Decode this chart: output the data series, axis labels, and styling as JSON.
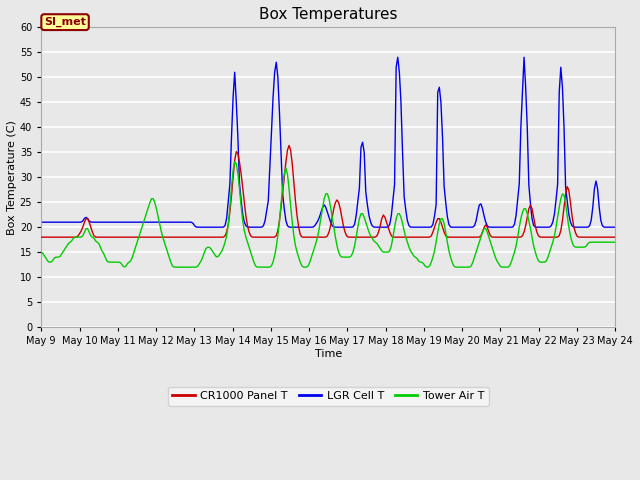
{
  "title": "Box Temperatures",
  "xlabel": "Time",
  "ylabel": "Box Temperature (C)",
  "ylim": [
    0,
    60
  ],
  "yticks": [
    0,
    5,
    10,
    15,
    20,
    25,
    30,
    35,
    40,
    45,
    50,
    55,
    60
  ],
  "background_color": "#e8e8e8",
  "plot_bg_color": "#e8e8e8",
  "grid_color": "#ffffff",
  "annotation_text": "SI_met",
  "annotation_bg": "#ffff99",
  "annotation_border": "#8B0000",
  "annotation_text_color": "#8B0000",
  "legend_entries": [
    "CR1000 Panel T",
    "LGR Cell T",
    "Tower Air T"
  ],
  "line_colors": [
    "#cc0000",
    "#0000ee",
    "#00cc00"
  ],
  "title_fontsize": 11,
  "tick_fontsize": 7,
  "label_fontsize": 8,
  "cr1000": [
    18,
    18,
    18,
    18,
    18,
    18,
    18,
    18,
    18,
    18,
    18,
    18,
    18,
    18,
    18,
    18,
    18,
    18,
    18,
    18,
    18,
    18,
    18,
    18,
    19,
    19,
    20,
    21,
    22,
    22,
    21,
    20,
    19,
    18,
    18,
    18,
    18,
    18,
    18,
    18,
    18,
    18,
    18,
    18,
    18,
    18,
    18,
    18,
    18,
    18,
    18,
    18,
    18,
    18,
    18,
    18,
    18,
    18,
    18,
    18,
    18,
    18,
    18,
    18,
    18,
    18,
    18,
    18,
    18,
    18,
    18,
    18,
    18,
    18,
    18,
    18,
    18,
    18,
    18,
    18,
    18,
    18,
    18,
    18,
    18,
    18,
    18,
    18,
    18,
    18,
    18,
    18,
    18,
    18,
    18,
    18,
    18,
    18,
    18,
    18,
    18,
    18,
    18,
    18,
    18,
    18,
    18,
    18,
    18,
    18,
    18,
    18,
    18,
    18,
    18,
    18,
    19,
    20,
    23,
    26,
    30,
    34,
    36,
    35,
    33,
    31,
    28,
    25,
    22,
    20,
    19,
    18,
    18,
    18,
    18,
    18,
    18,
    18,
    18,
    18,
    18,
    18,
    18,
    18,
    18,
    18,
    18,
    18,
    19,
    21,
    24,
    27,
    30,
    33,
    36,
    37,
    36,
    33,
    29,
    25,
    22,
    20,
    18,
    18,
    18,
    18,
    18,
    18,
    18,
    18,
    18,
    18,
    18,
    18,
    18,
    18,
    18,
    18,
    18,
    18,
    19,
    20,
    22,
    24,
    25,
    26,
    25,
    24,
    22,
    20,
    19,
    18,
    18,
    18,
    18,
    18,
    18,
    18,
    18,
    18,
    18,
    18,
    18,
    18,
    18,
    18,
    18,
    18,
    18,
    18,
    18,
    19,
    20,
    22,
    23,
    22,
    21,
    20,
    19,
    18,
    18,
    18,
    18,
    18,
    18,
    18,
    18,
    18,
    18,
    18,
    18,
    18,
    18,
    18,
    18,
    18,
    18,
    18,
    18,
    18,
    18,
    18,
    18,
    18,
    18,
    19,
    20,
    21,
    22,
    22,
    21,
    20,
    19,
    18,
    18,
    18,
    18,
    18,
    18,
    18,
    18,
    18,
    18,
    18,
    18,
    18,
    18,
    18,
    18,
    18,
    18,
    18,
    18,
    18,
    18,
    18,
    19,
    20,
    21,
    20,
    19,
    18,
    18,
    18,
    18,
    18,
    18,
    18,
    18,
    18,
    18,
    18,
    18,
    18,
    18,
    18,
    18,
    18,
    18,
    18,
    18,
    18,
    19,
    20,
    22,
    24,
    25,
    24,
    22,
    20,
    19,
    18,
    18,
    18,
    18,
    18,
    18,
    18,
    18,
    18,
    18,
    18,
    18,
    18,
    18,
    19,
    21,
    24,
    27,
    29,
    28,
    25,
    22,
    20,
    19,
    18,
    18,
    18,
    18,
    18,
    18,
    18,
    18,
    18,
    18,
    18,
    18,
    18,
    18,
    18,
    18,
    18,
    18,
    18,
    18,
    18,
    18,
    18,
    18,
    18
  ],
  "lgr": [
    21,
    21,
    21,
    21,
    21,
    21,
    21,
    21,
    21,
    21,
    21,
    21,
    21,
    21,
    21,
    21,
    21,
    21,
    21,
    21,
    21,
    21,
    21,
    21,
    21,
    21,
    21,
    22,
    22,
    22,
    21,
    21,
    21,
    21,
    21,
    21,
    21,
    21,
    21,
    21,
    21,
    21,
    21,
    21,
    21,
    21,
    21,
    21,
    21,
    21,
    21,
    21,
    21,
    21,
    21,
    21,
    21,
    21,
    21,
    21,
    21,
    21,
    21,
    21,
    21,
    21,
    21,
    21,
    21,
    21,
    21,
    21,
    21,
    21,
    21,
    21,
    21,
    21,
    21,
    21,
    21,
    21,
    21,
    21,
    21,
    21,
    21,
    21,
    21,
    21,
    21,
    21,
    21,
    21,
    21,
    21,
    20,
    20,
    20,
    20,
    20,
    20,
    20,
    20,
    20,
    20,
    20,
    20,
    20,
    20,
    20,
    20,
    20,
    20,
    20,
    20,
    21,
    25,
    30,
    38,
    46,
    51,
    45,
    38,
    30,
    25,
    22,
    21,
    20,
    20,
    20,
    20,
    20,
    20,
    20,
    20,
    20,
    20,
    20,
    20,
    21,
    23,
    26,
    32,
    39,
    46,
    51,
    53,
    50,
    43,
    35,
    28,
    23,
    21,
    20,
    20,
    20,
    20,
    20,
    20,
    20,
    20,
    20,
    20,
    20,
    20,
    20,
    20,
    20,
    20,
    20,
    20,
    21,
    21,
    22,
    23,
    24,
    25,
    24,
    23,
    22,
    21,
    20,
    20,
    20,
    20,
    20,
    20,
    20,
    20,
    20,
    20,
    20,
    20,
    20,
    20,
    20,
    22,
    25,
    29,
    36,
    37,
    35,
    28,
    24,
    22,
    21,
    20,
    20,
    20,
    20,
    20,
    20,
    20,
    20,
    20,
    20,
    20,
    20,
    22,
    25,
    30,
    52,
    54,
    51,
    45,
    35,
    27,
    23,
    21,
    20,
    20,
    20,
    20,
    20,
    20,
    20,
    20,
    20,
    20,
    20,
    20,
    20,
    20,
    20,
    20,
    22,
    25,
    47,
    48,
    45,
    38,
    30,
    24,
    22,
    20,
    20,
    20,
    20,
    20,
    20,
    20,
    20,
    20,
    20,
    20,
    20,
    20,
    20,
    20,
    20,
    20,
    21,
    23,
    25,
    25,
    24,
    22,
    21,
    20,
    20,
    20,
    20,
    20,
    20,
    20,
    20,
    20,
    20,
    20,
    20,
    20,
    20,
    20,
    20,
    20,
    20,
    22,
    25,
    30,
    40,
    47,
    54,
    48,
    40,
    30,
    24,
    21,
    20,
    20,
    20,
    20,
    20,
    20,
    20,
    20,
    20,
    20,
    20,
    20,
    21,
    22,
    25,
    30,
    47,
    52,
    48,
    40,
    29,
    25,
    22,
    21,
    20,
    20,
    20,
    20,
    20,
    20,
    20,
    20,
    20,
    20,
    20,
    20,
    21,
    23,
    29,
    30,
    29,
    23,
    21,
    20,
    20,
    20,
    20,
    20,
    20,
    20,
    20,
    20
  ],
  "tower": [
    15,
    15,
    14,
    14,
    13,
    13,
    13,
    13,
    14,
    14,
    14,
    14,
    14,
    15,
    15,
    16,
    16,
    17,
    17,
    17,
    18,
    18,
    18,
    18,
    18,
    18,
    18,
    19,
    20,
    20,
    19,
    18,
    18,
    18,
    17,
    17,
    17,
    16,
    15,
    15,
    14,
    13,
    13,
    13,
    13,
    13,
    13,
    13,
    13,
    13,
    13,
    12,
    12,
    12,
    13,
    13,
    13,
    14,
    15,
    16,
    17,
    18,
    19,
    20,
    21,
    22,
    23,
    24,
    25,
    26,
    26,
    25,
    24,
    22,
    21,
    19,
    18,
    17,
    16,
    15,
    14,
    13,
    12,
    12,
    12,
    12,
    12,
    12,
    12,
    12,
    12,
    12,
    12,
    12,
    12,
    12,
    12,
    12,
    12,
    13,
    13,
    14,
    15,
    16,
    16,
    16,
    16,
    15,
    15,
    14,
    14,
    14,
    15,
    15,
    16,
    17,
    18,
    20,
    24,
    28,
    32,
    34,
    33,
    31,
    28,
    24,
    21,
    19,
    18,
    17,
    16,
    15,
    14,
    13,
    12,
    12,
    12,
    12,
    12,
    12,
    12,
    12,
    12,
    12,
    12,
    13,
    14,
    16,
    18,
    21,
    25,
    28,
    31,
    33,
    31,
    28,
    24,
    21,
    18,
    16,
    15,
    14,
    13,
    12,
    12,
    12,
    12,
    12,
    13,
    14,
    15,
    16,
    17,
    18,
    20,
    22,
    24,
    26,
    27,
    27,
    26,
    24,
    22,
    20,
    18,
    16,
    15,
    14,
    14,
    14,
    14,
    14,
    14,
    14,
    14,
    15,
    16,
    18,
    20,
    22,
    23,
    23,
    22,
    21,
    20,
    19,
    18,
    18,
    17,
    17,
    17,
    16,
    16,
    15,
    15,
    15,
    15,
    15,
    15,
    16,
    18,
    20,
    22,
    23,
    23,
    22,
    21,
    19,
    18,
    17,
    16,
    15,
    15,
    14,
    14,
    14,
    13,
    13,
    13,
    13,
    12,
    12,
    12,
    12,
    13,
    14,
    15,
    17,
    19,
    21,
    22,
    22,
    21,
    19,
    17,
    15,
    14,
    13,
    12,
    12,
    12,
    12,
    12,
    12,
    12,
    12,
    12,
    12,
    12,
    12,
    13,
    14,
    15,
    16,
    17,
    18,
    19,
    20,
    20,
    19,
    18,
    17,
    16,
    15,
    14,
    13,
    13,
    12,
    12,
    12,
    12,
    12,
    12,
    12,
    13,
    14,
    15,
    16,
    18,
    20,
    22,
    23,
    24,
    24,
    23,
    21,
    20,
    18,
    16,
    15,
    14,
    13,
    13,
    13,
    13,
    13,
    13,
    14,
    15,
    16,
    17,
    18,
    20,
    22,
    24,
    26,
    27,
    27,
    25,
    22,
    20,
    18,
    17,
    16,
    16,
    16,
    16,
    16,
    16,
    16,
    16,
    16,
    17,
    17,
    17,
    17,
    17,
    17,
    17,
    17,
    17,
    17,
    17,
    17,
    17,
    17,
    17,
    17,
    17,
    17
  ]
}
